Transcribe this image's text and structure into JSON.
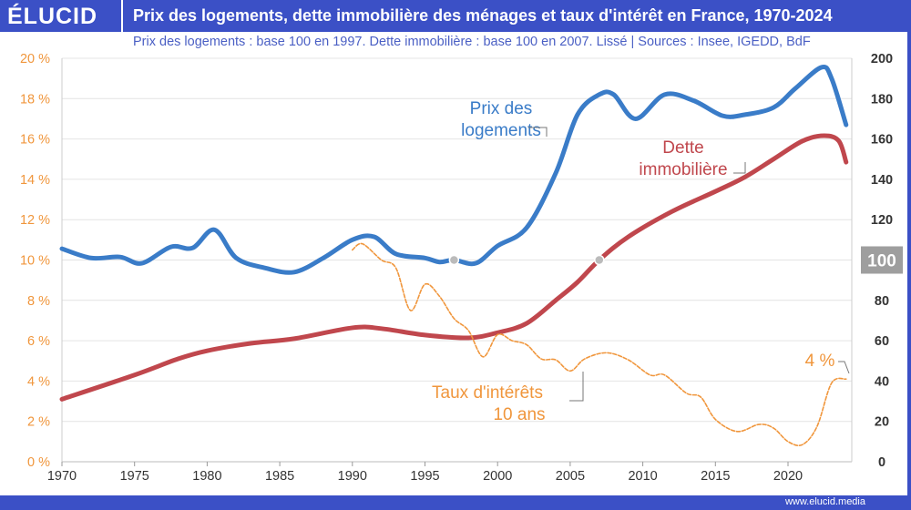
{
  "header": {
    "logo": "ÉLUCID",
    "title": "Prix des logements, dette immobilière des ménages et taux d'intérêt en France, 1970-2024",
    "subtitle": "Prix des logements : base 100 en 1997. Dette immobilière : base 100 en 2007. Lissé  |  Sources : Insee, IGEDD, BdF"
  },
  "footer": {
    "url": "www.elucid.media"
  },
  "colors": {
    "brand": "#3b50c6",
    "prix": "#3a7cc8",
    "dette": "#c0474d",
    "taux": "#f0963c",
    "marker": "#bbbbbb"
  },
  "chart_data": {
    "type": "line",
    "title": "Prix des logements, dette immobilière des ménages et taux d'intérêt en France, 1970-2024",
    "xlim": [
      1970,
      2025
    ],
    "x_ticks": [
      "1970",
      "1975",
      "1980",
      "1985",
      "1990",
      "1995",
      "2000",
      "2005",
      "2010",
      "2015",
      "2020"
    ],
    "y_left": {
      "range": [
        0,
        20
      ],
      "ticks": [
        "0 %",
        "2 %",
        "4 %",
        "6 %",
        "8 %",
        "10 %",
        "12 %",
        "14 %",
        "16 %",
        "18 %",
        "20 %"
      ]
    },
    "y_right": {
      "range": [
        0,
        200
      ],
      "ticks": [
        "0",
        "20",
        "40",
        "60",
        "80",
        "100",
        "120",
        "140",
        "160",
        "180",
        "200"
      ],
      "highlight": "100"
    },
    "grid": "horizontal",
    "series": [
      {
        "name": "Prix des logements",
        "axis": "right",
        "label_lines": [
          "Prix des",
          "logements"
        ],
        "points": [
          [
            1970,
            105.6
          ],
          [
            1972,
            101
          ],
          [
            1974,
            101.5
          ],
          [
            1975.5,
            98.4
          ],
          [
            1977.5,
            106.5
          ],
          [
            1979,
            106
          ],
          [
            1980.5,
            115
          ],
          [
            1982,
            101
          ],
          [
            1984,
            96
          ],
          [
            1986,
            94
          ],
          [
            1988,
            101
          ],
          [
            1990,
            110
          ],
          [
            1991.5,
            111.5
          ],
          [
            1993,
            103
          ],
          [
            1995,
            101
          ],
          [
            1996,
            99
          ],
          [
            1997,
            100
          ],
          [
            1998.5,
            98.4
          ],
          [
            2000,
            107
          ],
          [
            2002,
            116
          ],
          [
            2004,
            143
          ],
          [
            2005.5,
            172
          ],
          [
            2007,
            182
          ],
          [
            2008,
            182
          ],
          [
            2009.5,
            170
          ],
          [
            2011.5,
            182
          ],
          [
            2013.5,
            179
          ],
          [
            2015.5,
            171.5
          ],
          [
            2017,
            172
          ],
          [
            2019,
            175.6
          ],
          [
            2020.5,
            185
          ],
          [
            2022.3,
            195.5
          ],
          [
            2023,
            190
          ],
          [
            2024,
            167
          ]
        ]
      },
      {
        "name": "Dette immobilière",
        "axis": "right",
        "label_lines": [
          "Dette",
          "immobilière"
        ],
        "points": [
          [
            1970,
            31
          ],
          [
            1975,
            43
          ],
          [
            1978,
            51
          ],
          [
            1980,
            55
          ],
          [
            1983,
            58.7
          ],
          [
            1986,
            61
          ],
          [
            1990,
            66.4
          ],
          [
            1992,
            66
          ],
          [
            1995,
            62.8
          ],
          [
            1998,
            61.4
          ],
          [
            2000,
            64
          ],
          [
            2002,
            68.6
          ],
          [
            2004,
            80
          ],
          [
            2005.5,
            89
          ],
          [
            2007,
            100
          ],
          [
            2009,
            111.5
          ],
          [
            2012,
            124
          ],
          [
            2015,
            134
          ],
          [
            2017,
            141
          ],
          [
            2019,
            150
          ],
          [
            2021,
            159
          ],
          [
            2022.5,
            161.6
          ],
          [
            2023.5,
            159
          ],
          [
            2024,
            148.5
          ]
        ]
      },
      {
        "name": "Taux d'intérêts 10 ans",
        "axis": "left",
        "label_lines": [
          "Taux d'intérêts",
          "10 ans"
        ],
        "points": [
          [
            1990,
            10.5
          ],
          [
            1990.7,
            10.8
          ],
          [
            1992,
            10
          ],
          [
            1993,
            9.6
          ],
          [
            1994,
            7.5
          ],
          [
            1995,
            8.8
          ],
          [
            1996,
            8.2
          ],
          [
            1997,
            7.1
          ],
          [
            1998,
            6.5
          ],
          [
            1999,
            5.2
          ],
          [
            2000,
            6.3
          ],
          [
            2001,
            6
          ],
          [
            2002,
            5.8
          ],
          [
            2003,
            5.1
          ],
          [
            2004,
            5.05
          ],
          [
            2005,
            4.5
          ],
          [
            2006,
            5.1
          ],
          [
            2007.5,
            5.4
          ],
          [
            2009,
            5.05
          ],
          [
            2010.5,
            4.3
          ],
          [
            2011.5,
            4.3
          ],
          [
            2013,
            3.4
          ],
          [
            2014,
            3.2
          ],
          [
            2015,
            2.1
          ],
          [
            2016.5,
            1.5
          ],
          [
            2018,
            1.85
          ],
          [
            2019,
            1.67
          ],
          [
            2020,
            1.0
          ],
          [
            2021,
            0.85
          ],
          [
            2022,
            1.75
          ],
          [
            2023,
            3.9
          ],
          [
            2024,
            4.1
          ]
        ]
      }
    ],
    "base_markers": [
      [
        1997,
        100
      ],
      [
        2007,
        100
      ]
    ],
    "annotations": [
      "4 %"
    ]
  }
}
